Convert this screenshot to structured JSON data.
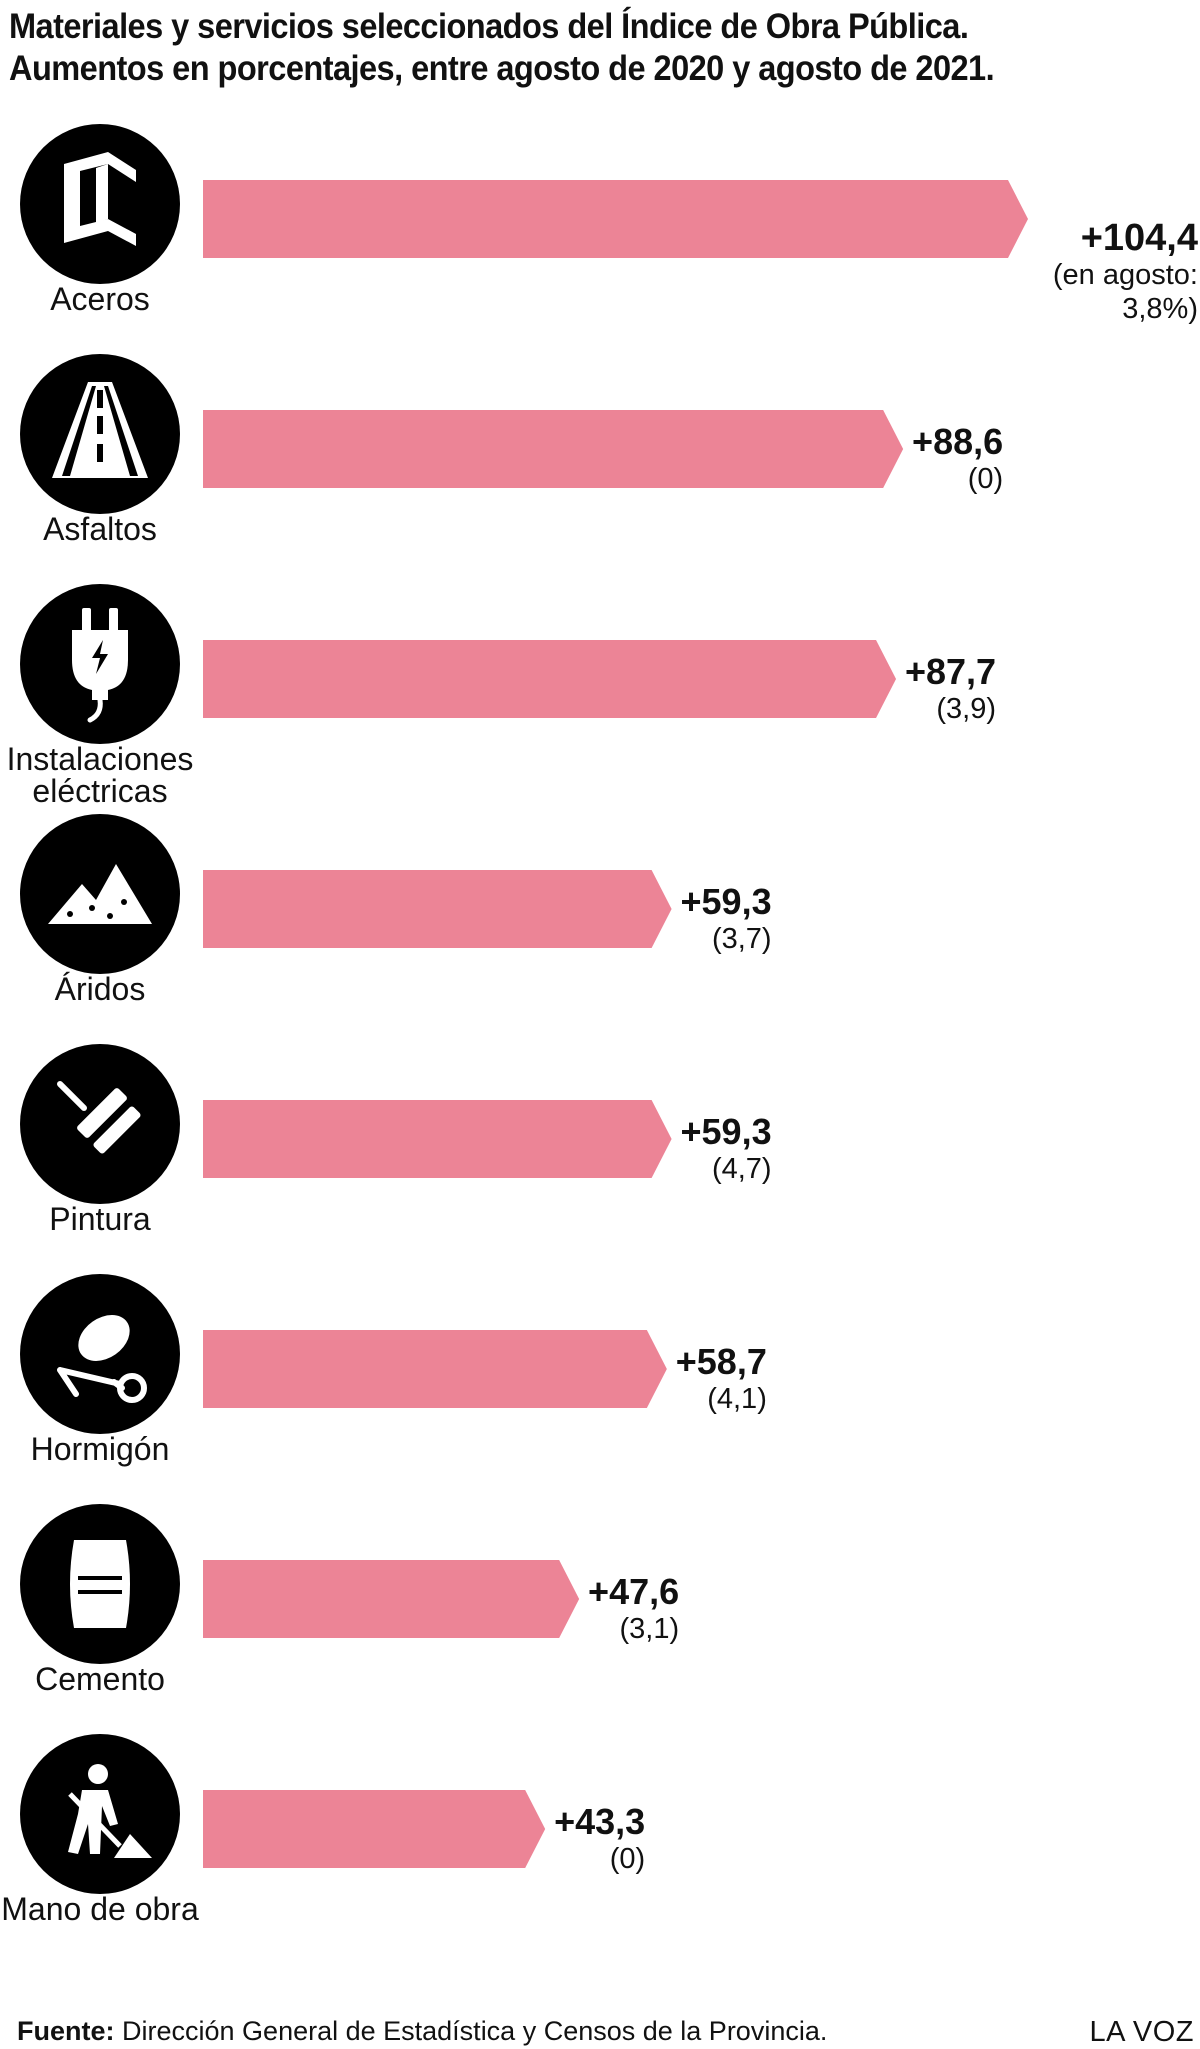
{
  "title": {
    "line1": "Materiales y servicios seleccionados del Índice de Obra Pública.",
    "line2": "Aumentos en porcentajes, entre agosto de 2020 y agosto de 2021."
  },
  "chart_data": {
    "type": "bar",
    "orientation": "horizontal",
    "title": "Materiales y servicios seleccionados del Índice de Obra Pública. Aumentos en porcentajes, entre agosto de 2020 y agosto de 2021.",
    "unit": "%",
    "xlim": [
      0,
      104.4
    ],
    "grid": false,
    "legend": "none",
    "bar_color": "#ec8496",
    "categories": [
      {
        "label": [
          "Aceros"
        ],
        "icon": "steel-beam-icon",
        "value": 104.4,
        "value_label": "+104,4",
        "note_lines": [
          "(en agosto:",
          "3,8%)"
        ]
      },
      {
        "label": [
          "Asfaltos"
        ],
        "icon": "road-icon",
        "value": 88.6,
        "value_label": "+88,6",
        "note_lines": [
          "(0)"
        ]
      },
      {
        "label": [
          "Instalaciones",
          "eléctricas"
        ],
        "icon": "electric-plug-icon",
        "value": 87.7,
        "value_label": "+87,7",
        "note_lines": [
          "(3,9)"
        ]
      },
      {
        "label": [
          "Áridos"
        ],
        "icon": "gravel-pile-icon",
        "value": 59.3,
        "value_label": "+59,3",
        "note_lines": [
          "(3,7)"
        ]
      },
      {
        "label": [
          "Pintura"
        ],
        "icon": "paint-roller-icon",
        "value": 59.3,
        "value_label": "+59,3",
        "note_lines": [
          "(4,7)"
        ]
      },
      {
        "label": [
          "Hormigón"
        ],
        "icon": "concrete-mixer-icon",
        "value": 58.7,
        "value_label": "+58,7",
        "note_lines": [
          "(4,1)"
        ]
      },
      {
        "label": [
          "Cemento"
        ],
        "icon": "cement-bag-icon",
        "value": 47.6,
        "value_label": "+47,6",
        "note_lines": [
          "(3,1)"
        ]
      },
      {
        "label": [
          "Mano de obra"
        ],
        "icon": "worker-icon",
        "value": 43.3,
        "value_label": "+43,3",
        "note_lines": [
          "(0)"
        ]
      }
    ]
  },
  "footer": {
    "source_label": "Fuente:",
    "source_text": "Dirección General de Estadística y Censos de la Provincia.",
    "brand": "LA VOZ"
  }
}
